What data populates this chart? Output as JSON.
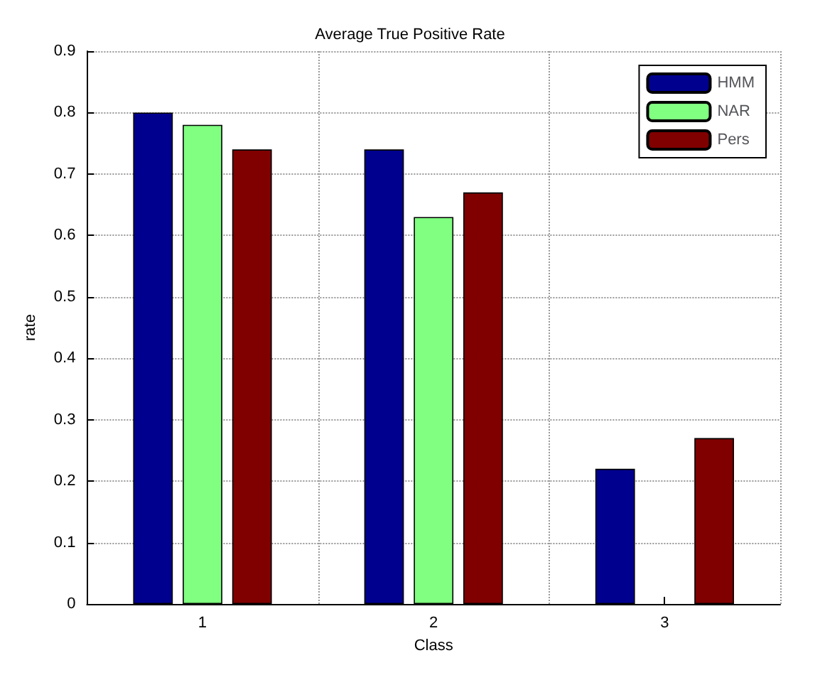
{
  "chart_data": {
    "type": "bar",
    "title": "Average True Positive Rate",
    "xlabel": "Class",
    "ylabel": "rate",
    "categories": [
      "1",
      "2",
      "3"
    ],
    "series": [
      {
        "name": "HMM",
        "color": "#00008f",
        "values": [
          0.8,
          0.74,
          0.22
        ]
      },
      {
        "name": "NAR",
        "color": "#80ff80",
        "values": [
          0.78,
          0.63,
          null
        ]
      },
      {
        "name": "Pers",
        "color": "#800000",
        "values": [
          0.74,
          0.67,
          0.27
        ]
      }
    ],
    "ylim": [
      0,
      0.9
    ],
    "yticks": [
      0,
      0.1,
      0.2,
      0.3,
      0.4,
      0.5,
      0.6,
      0.7,
      0.8,
      0.9
    ],
    "grid": true,
    "legend": "top right"
  }
}
